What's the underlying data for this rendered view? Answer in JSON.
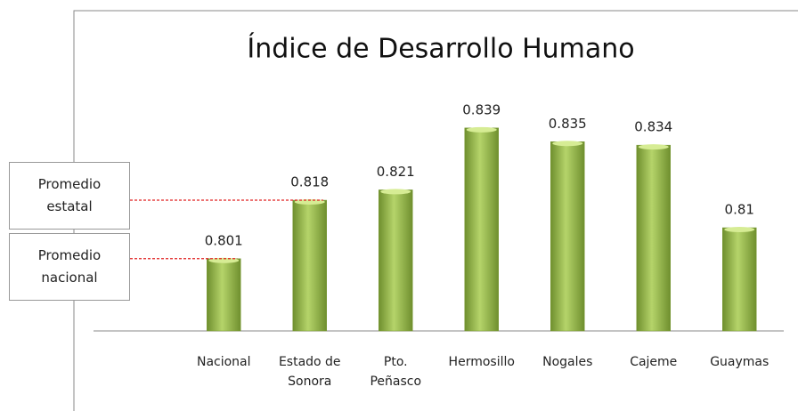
{
  "chart_data": {
    "type": "bar",
    "title": "Índice de Desarrollo Humano",
    "categories": [
      "Nacional",
      "Estado de\nSonora",
      "Pto.\nPeñasco",
      "Hermosillo",
      "Nogales",
      "Cajeme",
      "Guaymas"
    ],
    "values": [
      0.801,
      0.818,
      0.821,
      0.839,
      0.835,
      0.834,
      0.81
    ],
    "color": "#9bbb59",
    "ylim": [
      0.78,
      0.86
    ],
    "annotations": [
      {
        "text": "Promedio\nestatal",
        "value_index": 1
      },
      {
        "text": "Promedio\nnacional",
        "value_index": 0
      }
    ]
  }
}
